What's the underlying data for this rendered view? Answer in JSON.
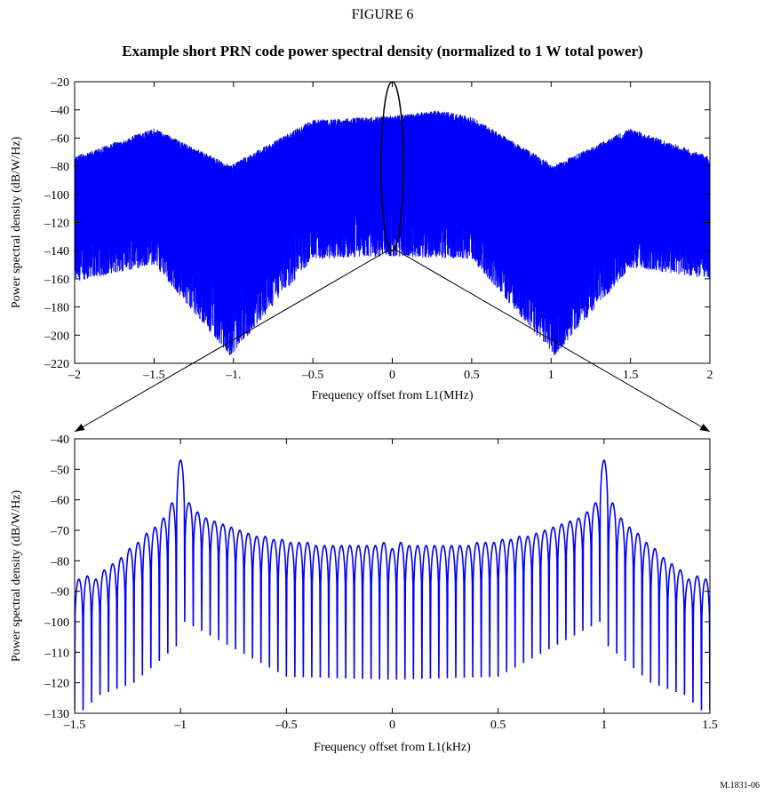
{
  "figure": {
    "label": "FIGURE 6",
    "title": "Example short PRN code power spectral density (normalized to 1 W total power)",
    "reference": "M.1831-06"
  },
  "colors": {
    "trace": "#0000ff",
    "axes": "#000000",
    "background": "#ffffff"
  },
  "chart_data": [
    {
      "type": "line",
      "xlabel": "Frequency offset from L1(MHz)",
      "ylabel": "Power spectral density (dB/W/Hz)",
      "xlim": [
        -2,
        2
      ],
      "ylim": [
        -220,
        -20
      ],
      "x_ticks": [
        -2,
        -1.5,
        -1,
        -0.5,
        0,
        0.5,
        1,
        1.5,
        2
      ],
      "x_tick_labels": [
        "–2",
        "–1.5",
        "–1.",
        "–0.5",
        "0",
        "0.5",
        "1",
        "1.5",
        "2"
      ],
      "y_ticks": [
        -20,
        -40,
        -60,
        -80,
        -100,
        -120,
        -140,
        -160,
        -180,
        -200,
        -220
      ],
      "y_tick_labels": [
        "–20",
        "–40",
        "–60",
        "–80",
        "–100",
        "–120",
        "–140",
        "–160",
        "–180",
        "–200",
        "–220"
      ],
      "grid": false,
      "series": [
        {
          "envelope_top": {
            "x": [
              -2,
              -1.5,
              -1.04,
              -1.02,
              -1.0,
              -0.5,
              0,
              0.3,
              0.5,
              1.0,
              1.02,
              1.04,
              1.5,
              2
            ],
            "y": [
              -73,
              -53,
              -78,
              -80,
              -78,
              -47,
              -44,
              -40,
              -45,
              -78,
              -80,
              -78,
              -53,
              -73
            ]
          },
          "envelope_bottom": {
            "x": [
              -2,
              -1.5,
              -1.02,
              -0.5,
              0,
              0.5,
              1.02,
              1.5,
              2
            ],
            "y": [
              -162,
              -150,
              -215,
              -146,
              -144,
              -146,
              -215,
              -152,
              -160
            ]
          }
        }
      ],
      "annotation": {
        "type": "ellipse",
        "center_x": 0,
        "center_y": -80,
        "half_width_x": 0.07,
        "half_height_y": 60
      }
    },
    {
      "type": "line",
      "xlabel": "Frequency offset from L1(kHz)",
      "ylabel": "Power spectral density (dB/W/Hz)",
      "xlim": [
        -1.5,
        1.5
      ],
      "ylim": [
        -130,
        -40
      ],
      "x_ticks": [
        -1.5,
        -1,
        -0.5,
        0,
        0.5,
        1,
        1.5
      ],
      "x_tick_labels": [
        "–1.5",
        "–1",
        "–0.5",
        "0",
        "0.5",
        "1",
        "1.5"
      ],
      "y_ticks": [
        -40,
        -50,
        -60,
        -70,
        -80,
        -90,
        -100,
        -110,
        -120,
        -130
      ],
      "y_tick_labels": [
        "–40",
        "–50",
        "–60",
        "–70",
        "–80",
        "–90",
        "–100",
        "–110",
        "–120",
        "–130"
      ],
      "grid": false,
      "series": [
        {
          "line_spacing_khz": 0.04,
          "peaks": [
            {
              "x": -1.48,
              "y": -86
            },
            {
              "x": -1.44,
              "y": -85
            },
            {
              "x": -1.4,
              "y": -86
            },
            {
              "x": -1.36,
              "y": -83
            },
            {
              "x": -1.32,
              "y": -81
            },
            {
              "x": -1.28,
              "y": -79
            },
            {
              "x": -1.24,
              "y": -76
            },
            {
              "x": -1.2,
              "y": -74
            },
            {
              "x": -1.16,
              "y": -71
            },
            {
              "x": -1.12,
              "y": -69
            },
            {
              "x": -1.08,
              "y": -66
            },
            {
              "x": -1.04,
              "y": -61
            },
            {
              "x": -1.0,
              "y": -47
            },
            {
              "x": -0.96,
              "y": -61
            },
            {
              "x": -0.92,
              "y": -64
            },
            {
              "x": -0.88,
              "y": -66
            },
            {
              "x": -0.84,
              "y": -67
            },
            {
              "x": -0.8,
              "y": -68
            },
            {
              "x": -0.76,
              "y": -69
            },
            {
              "x": -0.72,
              "y": -70
            },
            {
              "x": -0.68,
              "y": -71
            },
            {
              "x": -0.64,
              "y": -72
            },
            {
              "x": -0.6,
              "y": -72
            },
            {
              "x": -0.56,
              "y": -73
            },
            {
              "x": -0.52,
              "y": -73
            },
            {
              "x": -0.48,
              "y": -74
            },
            {
              "x": -0.44,
              "y": -74
            },
            {
              "x": -0.4,
              "y": -74
            },
            {
              "x": -0.36,
              "y": -75
            },
            {
              "x": -0.32,
              "y": -75
            },
            {
              "x": -0.28,
              "y": -75
            },
            {
              "x": -0.24,
              "y": -75
            },
            {
              "x": -0.2,
              "y": -75
            },
            {
              "x": -0.16,
              "y": -75
            },
            {
              "x": -0.12,
              "y": -75
            },
            {
              "x": -0.08,
              "y": -75
            },
            {
              "x": -0.04,
              "y": -74
            },
            {
              "x": 0.0,
              "y": -76
            },
            {
              "x": 0.04,
              "y": -74
            },
            {
              "x": 0.08,
              "y": -75
            },
            {
              "x": 0.12,
              "y": -75
            },
            {
              "x": 0.16,
              "y": -75
            },
            {
              "x": 0.2,
              "y": -75
            },
            {
              "x": 0.24,
              "y": -75
            },
            {
              "x": 0.28,
              "y": -75
            },
            {
              "x": 0.32,
              "y": -75
            },
            {
              "x": 0.36,
              "y": -75
            },
            {
              "x": 0.4,
              "y": -74
            },
            {
              "x": 0.44,
              "y": -74
            },
            {
              "x": 0.48,
              "y": -74
            },
            {
              "x": 0.52,
              "y": -73
            },
            {
              "x": 0.56,
              "y": -73
            },
            {
              "x": 0.6,
              "y": -72
            },
            {
              "x": 0.64,
              "y": -72
            },
            {
              "x": 0.68,
              "y": -71
            },
            {
              "x": 0.72,
              "y": -70
            },
            {
              "x": 0.76,
              "y": -69
            },
            {
              "x": 0.8,
              "y": -68
            },
            {
              "x": 0.84,
              "y": -67
            },
            {
              "x": 0.88,
              "y": -66
            },
            {
              "x": 0.92,
              "y": -64
            },
            {
              "x": 0.96,
              "y": -61
            },
            {
              "x": 1.0,
              "y": -47
            },
            {
              "x": 1.04,
              "y": -61
            },
            {
              "x": 1.08,
              "y": -66
            },
            {
              "x": 1.12,
              "y": -69
            },
            {
              "x": 1.16,
              "y": -71
            },
            {
              "x": 1.2,
              "y": -74
            },
            {
              "x": 1.24,
              "y": -76
            },
            {
              "x": 1.28,
              "y": -79
            },
            {
              "x": 1.32,
              "y": -81
            },
            {
              "x": 1.36,
              "y": -83
            },
            {
              "x": 1.4,
              "y": -86
            },
            {
              "x": 1.44,
              "y": -85
            },
            {
              "x": 1.48,
              "y": -86
            }
          ],
          "null_depth": [
            {
              "x": -1.46,
              "y": -129
            },
            {
              "x": -1.38,
              "y": -124
            },
            {
              "x": -1.22,
              "y": -120
            },
            {
              "x": -1.02,
              "y": -108
            },
            {
              "x": -0.98,
              "y": -100
            },
            {
              "x": -0.5,
              "y": -118
            },
            {
              "x": 0,
              "y": -119
            },
            {
              "x": 0.5,
              "y": -118
            },
            {
              "x": 0.98,
              "y": -100
            },
            {
              "x": 1.02,
              "y": -108
            },
            {
              "x": 1.22,
              "y": -120
            },
            {
              "x": 1.38,
              "y": -124
            },
            {
              "x": 1.46,
              "y": -129
            }
          ]
        }
      ]
    }
  ]
}
